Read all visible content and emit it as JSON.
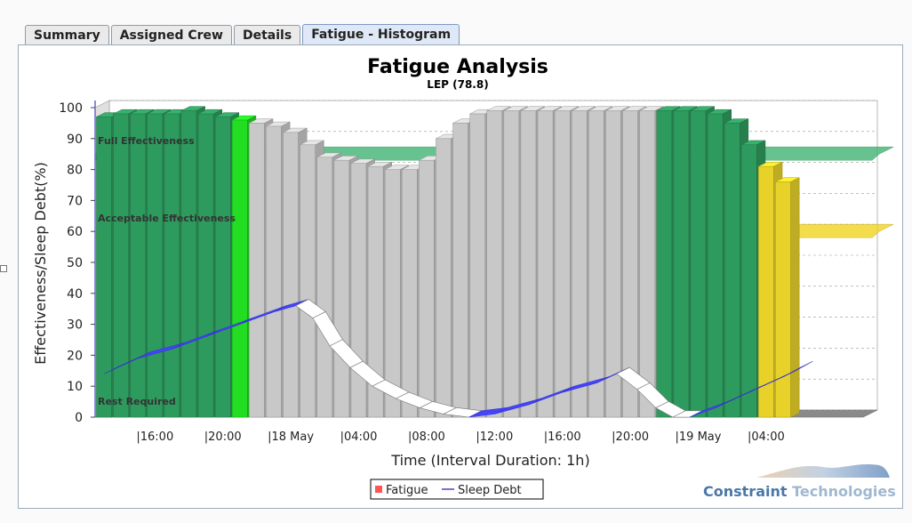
{
  "tabs": [
    {
      "label": "Summary",
      "active": false
    },
    {
      "label": "Assigned Crew",
      "active": false
    },
    {
      "label": "Details",
      "active": false
    },
    {
      "label": "Fatigue - Histogram",
      "active": true
    }
  ],
  "brand": {
    "word1": "Constraint",
    "word2": " Technologies",
    "color1": "#4a78a8",
    "color2": "#9fb8d0"
  },
  "chart_data": {
    "type": "bar",
    "title": "Fatigue Analysis",
    "subtitle": "LEP (78.8)",
    "xlabel": "Time (Interval Duration:  1h)",
    "ylabel": "Effectiveness/Sleep Debt(%)",
    "ylim": [
      0,
      100
    ],
    "yticks": [
      0,
      10,
      20,
      30,
      40,
      50,
      60,
      70,
      80,
      90,
      100
    ],
    "xtick_labels": [
      "|16:00",
      "|20:00",
      "|18 May",
      "|04:00",
      "|08:00",
      "|12:00",
      "|16:00",
      "|20:00",
      "|19 May",
      "|04:00"
    ],
    "xtick_hours": [
      4,
      8,
      12,
      16,
      20,
      24,
      28,
      32,
      36,
      40
    ],
    "hour_origin_label": "12:00",
    "thresholds": [
      {
        "label": "Full Effectiveness",
        "value": 85,
        "color": "#3cb371"
      },
      {
        "label": "Acceptable Effectiveness",
        "value": 60,
        "color": "#f2d41b"
      },
      {
        "label": "Rest Required",
        "value": 0,
        "color": "#808080"
      }
    ],
    "colors": {
      "rested": "#2e9b5e",
      "current": "#22dd22",
      "gray": "#c8c8c8",
      "caution": "#e8d22a",
      "sleep_debt": "#4444ff"
    },
    "bars": [
      {
        "hour": 1,
        "value": 97,
        "category": "rested"
      },
      {
        "hour": 2,
        "value": 98,
        "category": "rested"
      },
      {
        "hour": 3,
        "value": 98,
        "category": "rested"
      },
      {
        "hour": 4,
        "value": 98,
        "category": "rested"
      },
      {
        "hour": 5,
        "value": 98,
        "category": "rested"
      },
      {
        "hour": 6,
        "value": 99,
        "category": "rested"
      },
      {
        "hour": 7,
        "value": 98,
        "category": "rested"
      },
      {
        "hour": 8,
        "value": 97,
        "category": "rested"
      },
      {
        "hour": 9,
        "value": 96,
        "category": "current"
      },
      {
        "hour": 10,
        "value": 95,
        "category": "gray"
      },
      {
        "hour": 11,
        "value": 94,
        "category": "gray"
      },
      {
        "hour": 12,
        "value": 92,
        "category": "gray"
      },
      {
        "hour": 13,
        "value": 88,
        "category": "gray"
      },
      {
        "hour": 14,
        "value": 84,
        "category": "gray"
      },
      {
        "hour": 15,
        "value": 83,
        "category": "gray"
      },
      {
        "hour": 16,
        "value": 82,
        "category": "gray"
      },
      {
        "hour": 17,
        "value": 81,
        "category": "gray"
      },
      {
        "hour": 18,
        "value": 80,
        "category": "gray"
      },
      {
        "hour": 19,
        "value": 80,
        "category": "gray"
      },
      {
        "hour": 20,
        "value": 83,
        "category": "gray"
      },
      {
        "hour": 21,
        "value": 90,
        "category": "gray"
      },
      {
        "hour": 22,
        "value": 95,
        "category": "gray"
      },
      {
        "hour": 23,
        "value": 98,
        "category": "gray"
      },
      {
        "hour": 24,
        "value": 99,
        "category": "gray"
      },
      {
        "hour": 25,
        "value": 99,
        "category": "gray"
      },
      {
        "hour": 26,
        "value": 99,
        "category": "gray"
      },
      {
        "hour": 27,
        "value": 99,
        "category": "gray"
      },
      {
        "hour": 28,
        "value": 99,
        "category": "gray"
      },
      {
        "hour": 29,
        "value": 99,
        "category": "gray"
      },
      {
        "hour": 30,
        "value": 99,
        "category": "gray"
      },
      {
        "hour": 31,
        "value": 99,
        "category": "gray"
      },
      {
        "hour": 32,
        "value": 99,
        "category": "gray"
      },
      {
        "hour": 33,
        "value": 99,
        "category": "gray"
      },
      {
        "hour": 34,
        "value": 99,
        "category": "rested"
      },
      {
        "hour": 35,
        "value": 99,
        "category": "rested"
      },
      {
        "hour": 36,
        "value": 99,
        "category": "rested"
      },
      {
        "hour": 37,
        "value": 98,
        "category": "rested"
      },
      {
        "hour": 38,
        "value": 95,
        "category": "rested"
      },
      {
        "hour": 39,
        "value": 88,
        "category": "rested"
      },
      {
        "hour": 40,
        "value": 81,
        "category": "caution"
      },
      {
        "hour": 41,
        "value": 76,
        "category": "caution"
      }
    ],
    "sleep_debt": [
      {
        "hour": 1,
        "value": 14
      },
      {
        "hour": 3,
        "value": 19
      },
      {
        "hour": 5,
        "value": 22
      },
      {
        "hour": 7,
        "value": 26
      },
      {
        "hour": 9,
        "value": 30
      },
      {
        "hour": 11,
        "value": 34
      },
      {
        "hour": 12.3,
        "value": 36
      },
      {
        "hour": 13.3,
        "value": 32
      },
      {
        "hour": 14.3,
        "value": 23
      },
      {
        "hour": 15.5,
        "value": 16
      },
      {
        "hour": 16.8,
        "value": 10
      },
      {
        "hour": 18.2,
        "value": 6
      },
      {
        "hour": 19.6,
        "value": 3
      },
      {
        "hour": 21,
        "value": 1
      },
      {
        "hour": 22.5,
        "value": 0
      },
      {
        "hour": 24,
        "value": 1
      },
      {
        "hour": 26,
        "value": 4
      },
      {
        "hour": 28,
        "value": 8
      },
      {
        "hour": 30,
        "value": 11
      },
      {
        "hour": 31.2,
        "value": 14
      },
      {
        "hour": 32.4,
        "value": 9
      },
      {
        "hour": 33.5,
        "value": 3
      },
      {
        "hour": 34.5,
        "value": 0
      },
      {
        "hour": 35.5,
        "value": 0
      },
      {
        "hour": 37,
        "value": 3
      },
      {
        "hour": 39,
        "value": 8
      },
      {
        "hour": 41,
        "value": 13
      },
      {
        "hour": 42,
        "value": 16
      }
    ],
    "legend": [
      {
        "label": "Fatigue",
        "color": "#ff5555",
        "shape": "square"
      },
      {
        "label": "Sleep Debt",
        "color": "#4444cc",
        "shape": "line"
      }
    ]
  }
}
